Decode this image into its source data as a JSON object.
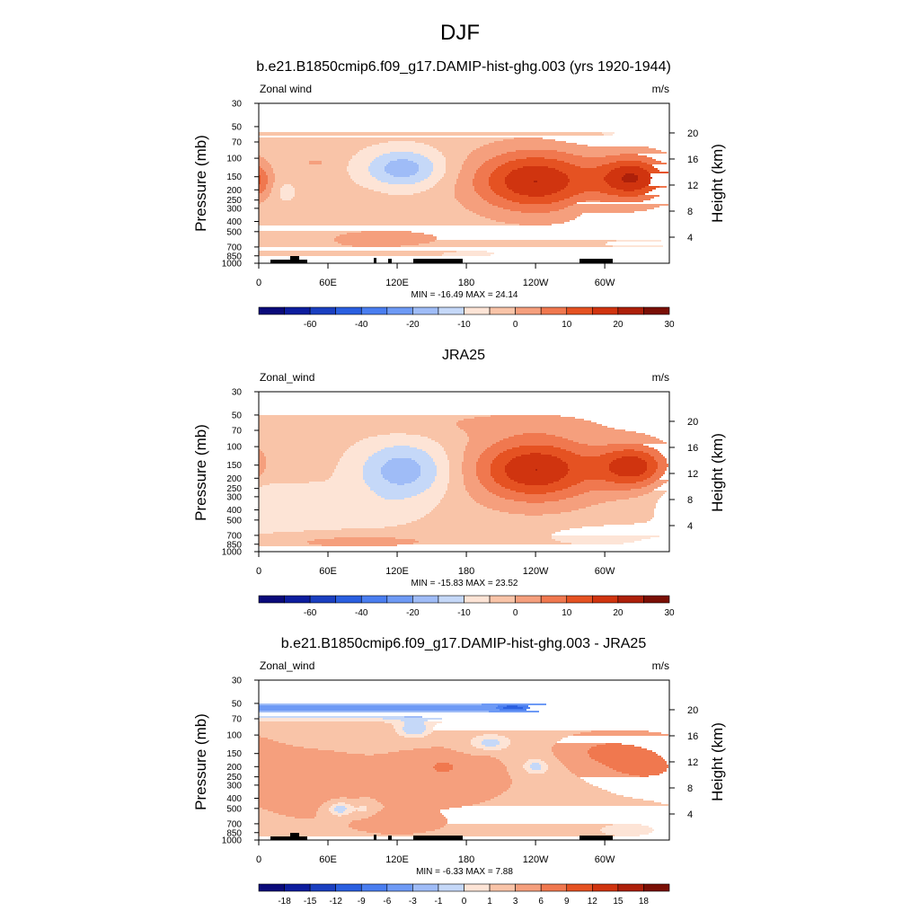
{
  "figure": {
    "title": "DJF"
  },
  "scales": {
    "full": {
      "labels": [
        "-60",
        "-40",
        "-20",
        "-10",
        "0",
        "10",
        "20",
        "30"
      ],
      "colors": [
        "#0a0a7a",
        "#0d1d9e",
        "#1a3fc0",
        "#2a5fe0",
        "#4a7ef0",
        "#6e9af5",
        "#9fbcf7",
        "#c5d8f8",
        "#fde4d6",
        "#f9c4a8",
        "#f59f7d",
        "#f0784f",
        "#e55222",
        "#d0340f",
        "#ad200a",
        "#7a0f05"
      ]
    },
    "diff": {
      "labels": [
        "-18",
        "-15",
        "-12",
        "-9",
        "-6",
        "-3",
        "-1",
        "0",
        "1",
        "3",
        "6",
        "9",
        "12",
        "15",
        "18"
      ],
      "colors": [
        "#0a0a7a",
        "#0d1d9e",
        "#1a3fc0",
        "#2a5fe0",
        "#4a7ef0",
        "#6e9af5",
        "#9fbcf7",
        "#c5d8f8",
        "#fde4d6",
        "#f9c4a8",
        "#f59f7d",
        "#f0784f",
        "#e55222",
        "#d0340f",
        "#ad200a",
        "#7a0f05"
      ]
    }
  },
  "panels": [
    {
      "title": "b.e21.B1850cmip6.f09_g17.DAMIP-hist-ghg.003 (yrs 1920-1944)",
      "var_label": "Zonal wind",
      "units": "m/s",
      "ylabel": "Pressure (mb)",
      "y2label": "Height (km)",
      "stats": "MIN = -16.49  MAX =  24.14",
      "scale": "full",
      "topography": true
    },
    {
      "title": "JRA25",
      "var_label": "Zonal_wind",
      "units": "m/s",
      "ylabel": "Pressure (mb)",
      "y2label": "Height (km)",
      "stats": "MIN = -15.83  MAX =  23.52",
      "scale": "full",
      "topography": false
    },
    {
      "title": "b.e21.B1850cmip6.f09_g17.DAMIP-hist-ghg.003 - JRA25",
      "var_label": "Zonal_wind",
      "units": "m/s",
      "ylabel": "Pressure (mb)",
      "y2label": "Height (km)",
      "stats": "MIN = -6.33  MAX =  7.88",
      "scale": "diff",
      "topography": true
    }
  ],
  "chart_data": {
    "type": "heatmap",
    "title": "DJF",
    "xlabel": "",
    "ylabel": "Pressure (mb)",
    "y2label": "Height (km)",
    "x_ticks": [
      "0",
      "60E",
      "120E",
      "180",
      "120W",
      "60W"
    ],
    "y_ticks": [
      "30",
      "50",
      "70",
      "100",
      "150",
      "200",
      "250",
      "300",
      "400",
      "500",
      "700",
      "850",
      "1000"
    ],
    "y2_ticks": [
      "20",
      "16",
      "12",
      "8",
      "4"
    ],
    "xlim": [
      0,
      356
    ],
    "ylim": [
      1000,
      30
    ],
    "y_scale": "log",
    "panels": [
      {
        "title": "b.e21.B1850cmip6.f09_g17.DAMIP-hist-ghg.003 (yrs 1920-1944)",
        "scale": "full",
        "background_value": 2,
        "blobs": [
          {
            "x": 30,
            "p": 50,
            "sx": 18,
            "sl": 0.13,
            "v": -2
          },
          {
            "x": 300,
            "p": 60,
            "sx": 28,
            "sl": 0.13,
            "v": -3
          },
          {
            "x": 125,
            "p": 125,
            "sx": 24,
            "sl": 0.3,
            "v": -15
          },
          {
            "x": 24,
            "p": 210,
            "sx": 6,
            "sl": 0.15,
            "v": -5
          },
          {
            "x": 240,
            "p": 165,
            "sx": 38,
            "sl": 0.48,
            "v": 23
          },
          {
            "x": 325,
            "p": 155,
            "sx": 22,
            "sl": 0.35,
            "v": 22
          },
          {
            "x": 0,
            "p": 165,
            "sx": 7,
            "sl": 0.25,
            "v": 8
          },
          {
            "x": 50,
            "p": 110,
            "sx": 8,
            "sl": 0.08,
            "v": 4
          },
          {
            "x": 110,
            "p": 600,
            "sx": 45,
            "sl": 0.2,
            "v": 5
          },
          {
            "x": 170,
            "p": 800,
            "sx": 45,
            "sl": 0.12,
            "v": -3
          },
          {
            "x": 95,
            "p": 230,
            "sx": 10,
            "sl": 0.1,
            "v": 1
          },
          {
            "x": 280,
            "p": 300,
            "sx": 10,
            "sl": 0.15,
            "v": -2
          },
          {
            "x": 330,
            "p": 650,
            "sx": 35,
            "sl": 0.1,
            "v": -3
          }
        ]
      },
      {
        "title": "JRA25",
        "scale": "full",
        "background_value": 2,
        "blobs": [
          {
            "x": 125,
            "p": 170,
            "sx": 28,
            "sl": 0.45,
            "v": -15
          },
          {
            "x": 30,
            "p": 380,
            "sx": 35,
            "sl": 0.4,
            "v": -5
          },
          {
            "x": 95,
            "p": 430,
            "sx": 30,
            "sl": 0.25,
            "v": -4
          },
          {
            "x": 0,
            "p": 280,
            "sx": 12,
            "sl": 0.25,
            "v": -3
          },
          {
            "x": 240,
            "p": 165,
            "sx": 38,
            "sl": 0.5,
            "v": 23
          },
          {
            "x": 325,
            "p": 155,
            "sx": 22,
            "sl": 0.35,
            "v": 20
          },
          {
            "x": 80,
            "p": 800,
            "sx": 60,
            "sl": 0.12,
            "v": 5
          },
          {
            "x": 300,
            "p": 700,
            "sx": 45,
            "sl": 0.2,
            "v": -4
          },
          {
            "x": 210,
            "p": 60,
            "sx": 80,
            "sl": 0.2,
            "v": 3
          }
        ]
      },
      {
        "title": "b.e21.B1850cmip6.f09_g17.DAMIP-hist-ghg.003 - JRA25",
        "scale": "diff",
        "background_value": 2,
        "blobs": [
          {
            "x": 0,
            "p": 55,
            "sx": 1000,
            "sl": 0.17,
            "v": -5.5
          },
          {
            "x": 220,
            "p": 55,
            "sx": 10,
            "sl": 0.05,
            "v": -8
          },
          {
            "x": 135,
            "p": 90,
            "sx": 12,
            "sl": 0.15,
            "v": -3
          },
          {
            "x": 45,
            "p": 300,
            "sx": 35,
            "sl": 0.5,
            "v": 3
          },
          {
            "x": 160,
            "p": 250,
            "sx": 45,
            "sl": 0.5,
            "v": 2.5
          },
          {
            "x": 330,
            "p": 190,
            "sx": 30,
            "sl": 0.4,
            "v": 4.5
          },
          {
            "x": 295,
            "p": 140,
            "sx": 25,
            "sl": 0.25,
            "v": 3
          },
          {
            "x": 23,
            "p": 200,
            "sx": 6,
            "sl": 0.12,
            "v": -1.5
          },
          {
            "x": 70,
            "p": 500,
            "sx": 10,
            "sl": 0.15,
            "v": -4
          },
          {
            "x": 92,
            "p": 500,
            "sx": 6,
            "sl": 0.15,
            "v": -2
          },
          {
            "x": 240,
            "p": 200,
            "sx": 10,
            "sl": 0.15,
            "v": -3
          },
          {
            "x": 200,
            "p": 120,
            "sx": 15,
            "sl": 0.15,
            "v": -3
          },
          {
            "x": 280,
            "p": 400,
            "sx": 12,
            "sl": 0.12,
            "v": -1
          },
          {
            "x": 320,
            "p": 800,
            "sx": 20,
            "sl": 0.12,
            "v": -2
          },
          {
            "x": 35,
            "p": 350,
            "sx": 10,
            "sl": 0.2,
            "v": -1
          },
          {
            "x": 160,
            "p": 200,
            "sx": 8,
            "sl": 0.1,
            "v": 3
          },
          {
            "x": 195,
            "p": 180,
            "sx": 6,
            "sl": 0.1,
            "v": 1
          },
          {
            "x": 120,
            "p": 700,
            "sx": 25,
            "sl": 0.15,
            "v": 3
          }
        ]
      }
    ]
  }
}
